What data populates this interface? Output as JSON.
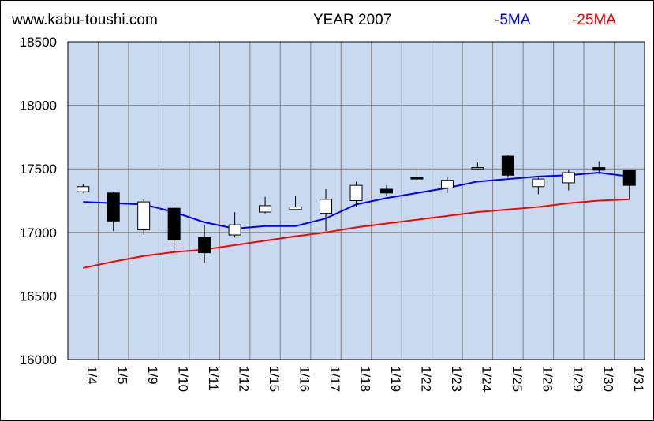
{
  "header": {
    "site": "www.kabu-toushi.com",
    "title": "YEAR 2007"
  },
  "legend": [
    {
      "label": "-5MA",
      "color": "#0000ff"
    },
    {
      "label": "-25MA",
      "color": "#ff0000"
    }
  ],
  "chart_data": {
    "type": "candlestick",
    "title": "YEAR 2007",
    "ylim": [
      16000,
      18500
    ],
    "yticks": [
      16000,
      16500,
      17000,
      17500,
      18000,
      18500
    ],
    "grid": true,
    "legend_position": "top-right",
    "plot_background": "#c9d9f0",
    "categories": [
      "1/4",
      "1/5",
      "1/9",
      "1/10",
      "1/11",
      "1/12",
      "1/15",
      "1/16",
      "1/17",
      "1/18",
      "1/19",
      "1/22",
      "1/23",
      "1/24",
      "1/25",
      "1/26",
      "1/29",
      "1/30",
      "1/31"
    ],
    "candles": [
      {
        "open": 17320,
        "high": 17380,
        "low": 17310,
        "close": 17360
      },
      {
        "open": 17310,
        "high": 17320,
        "low": 17010,
        "close": 17090
      },
      {
        "open": 17020,
        "high": 17260,
        "low": 16980,
        "close": 17240
      },
      {
        "open": 17190,
        "high": 17200,
        "low": 16850,
        "close": 16940
      },
      {
        "open": 16960,
        "high": 17060,
        "low": 16760,
        "close": 16840
      },
      {
        "open": 16980,
        "high": 17160,
        "low": 16960,
        "close": 17060
      },
      {
        "open": 17160,
        "high": 17280,
        "low": 17150,
        "close": 17210
      },
      {
        "open": 17180,
        "high": 17290,
        "low": 17180,
        "close": 17200
      },
      {
        "open": 17150,
        "high": 17340,
        "low": 17010,
        "close": 17260
      },
      {
        "open": 17250,
        "high": 17400,
        "low": 17200,
        "close": 17370
      },
      {
        "open": 17340,
        "high": 17370,
        "low": 17290,
        "close": 17310
      },
      {
        "open": 17430,
        "high": 17490,
        "low": 17400,
        "close": 17420
      },
      {
        "open": 17350,
        "high": 17440,
        "low": 17310,
        "close": 17410
      },
      {
        "open": 17500,
        "high": 17550,
        "low": 17490,
        "close": 17510
      },
      {
        "open": 17600,
        "high": 17610,
        "low": 17430,
        "close": 17450
      },
      {
        "open": 17360,
        "high": 17430,
        "low": 17300,
        "close": 17420
      },
      {
        "open": 17390,
        "high": 17490,
        "low": 17330,
        "close": 17470
      },
      {
        "open": 17510,
        "high": 17560,
        "low": 17460,
        "close": 17490
      },
      {
        "open": 17490,
        "high": 17490,
        "low": 17260,
        "close": 17370
      }
    ],
    "series": [
      {
        "name": "5MA",
        "color": "#0000ff",
        "values": [
          17240,
          17230,
          17220,
          17160,
          17080,
          17030,
          17050,
          17050,
          17110,
          17220,
          17270,
          17310,
          17350,
          17400,
          17420,
          17440,
          17450,
          17470,
          17440
        ]
      },
      {
        "name": "25MA",
        "color": "#ff0000",
        "values": [
          16720,
          16770,
          16815,
          16845,
          16865,
          16900,
          16935,
          16970,
          17000,
          17040,
          17070,
          17100,
          17130,
          17160,
          17180,
          17200,
          17230,
          17250,
          17260
        ]
      }
    ]
  }
}
